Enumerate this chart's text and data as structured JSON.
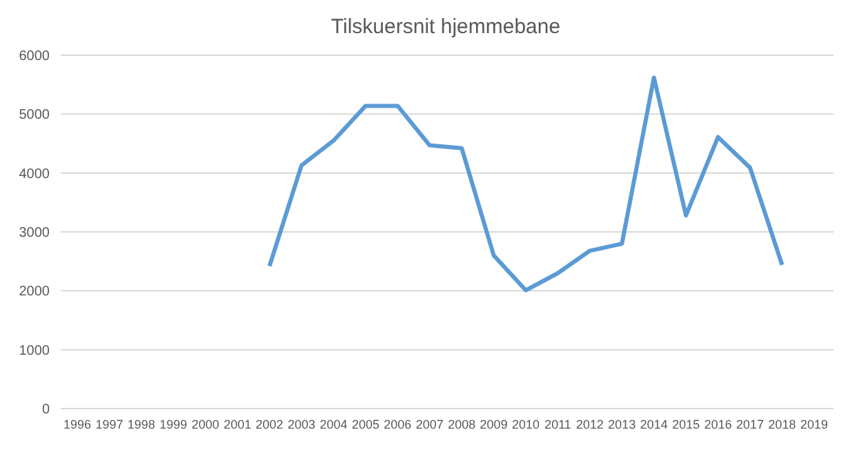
{
  "chart_data": {
    "type": "line",
    "title": "Tilskuersnit hjemmebane",
    "categories": [
      "1996",
      "1997",
      "1998",
      "1999",
      "2000",
      "2001",
      "2002",
      "2003",
      "2004",
      "2005",
      "2006",
      "2007",
      "2008",
      "2009",
      "2010",
      "2011",
      "2012",
      "2013",
      "2014",
      "2015",
      "2016",
      "2017",
      "2018",
      "2019"
    ],
    "series": [
      {
        "color": "#5b9bd5",
        "values": [
          null,
          null,
          null,
          null,
          null,
          null,
          2420,
          4130,
          4550,
          5140,
          5140,
          4470,
          4420,
          2600,
          2010,
          2300,
          2680,
          2800,
          5620,
          3280,
          4610,
          4090,
          2440,
          null
        ]
      }
    ],
    "ylim": [
      0,
      6000
    ],
    "yticks": [
      0,
      1000,
      2000,
      3000,
      4000,
      5000,
      6000
    ],
    "grid": "y",
    "legend": false,
    "marker": "none",
    "line_style": "solid"
  }
}
